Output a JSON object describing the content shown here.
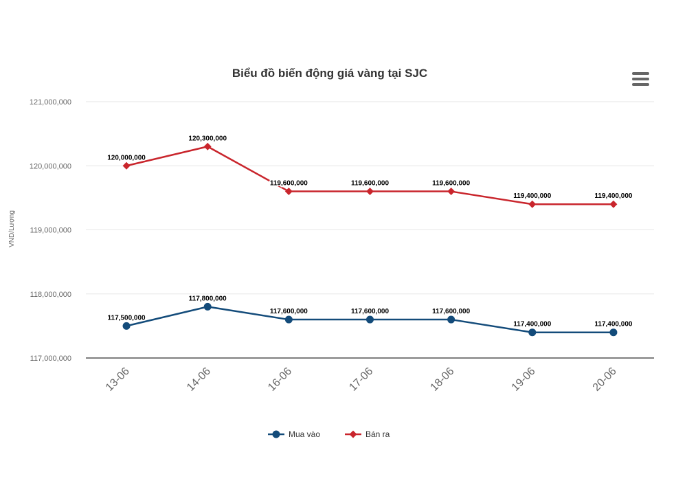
{
  "chart_data": {
    "type": "line",
    "title": "Biểu đồ biến động giá vàng tại SJC",
    "ylabel": "VND/Lượng",
    "xlabel": "",
    "categories": [
      "13-06",
      "14-06",
      "16-06",
      "17-06",
      "18-06",
      "19-06",
      "20-06"
    ],
    "ylim": [
      117000000,
      121000000
    ],
    "yticks": [
      117000000,
      118000000,
      119000000,
      120000000,
      121000000
    ],
    "ytick_labels": [
      "117,000,000",
      "118,000,000",
      "119,000,000",
      "120,000,000",
      "121,000,000"
    ],
    "grid": true,
    "legend_position": "bottom-center",
    "series": [
      {
        "name": "Mua vào",
        "color": "#134b7a",
        "marker": "circle",
        "values": [
          117500000,
          117800000,
          117600000,
          117600000,
          117600000,
          117400000,
          117400000
        ],
        "labels": [
          "117,500,000",
          "117,800,000",
          "117,600,000",
          "117,600,000",
          "117,600,000",
          "117,400,000",
          "117,400,000"
        ]
      },
      {
        "name": "Bán ra",
        "color": "#c9252c",
        "marker": "diamond",
        "values": [
          120000000,
          120300000,
          119600000,
          119600000,
          119600000,
          119400000,
          119400000
        ],
        "labels": [
          "120,000,000",
          "120,300,000",
          "119,600,000",
          "119,600,000",
          "119,600,000",
          "119,400,000",
          "119,400,000"
        ]
      }
    ]
  },
  "menu": {
    "icon": "hamburger-menu-icon"
  }
}
